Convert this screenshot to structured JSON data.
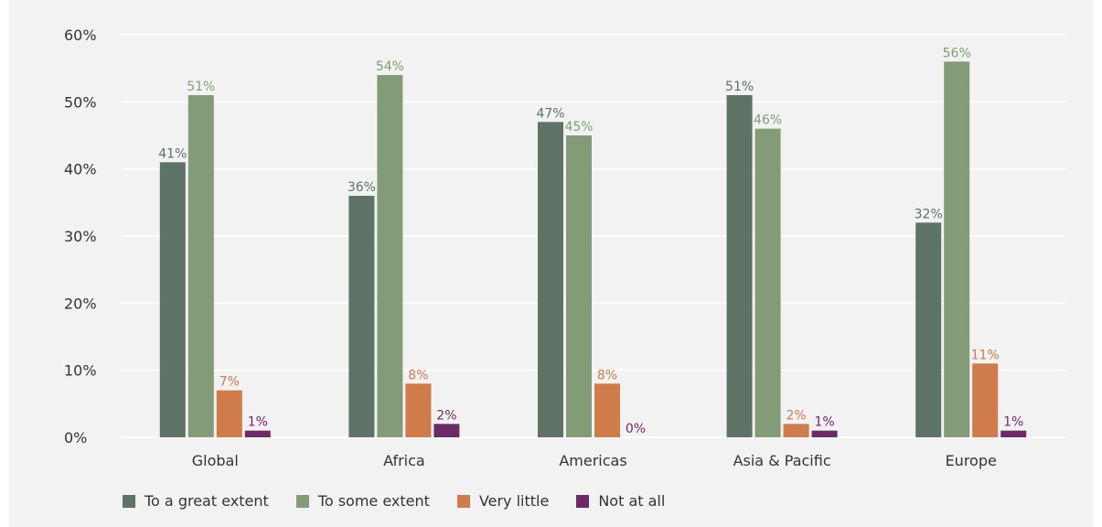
{
  "chart_data": {
    "type": "bar",
    "categories": [
      "Global",
      "Africa",
      "Americas",
      "Asia & Pacific",
      "Europe"
    ],
    "series": [
      {
        "name": "To a great extent",
        "color": "#5e7268",
        "label_color": "#5e7268",
        "values": [
          41,
          36,
          47,
          51,
          32
        ],
        "labels": [
          "41%",
          "36%",
          "47%",
          "51%",
          "32%"
        ]
      },
      {
        "name": "To some extent",
        "color": "#839c77",
        "label_color": "#839c77",
        "values": [
          51,
          54,
          45,
          46,
          56
        ],
        "labels": [
          "51%",
          "54%",
          "45%",
          "46%",
          "56%"
        ]
      },
      {
        "name": "Very little",
        "color": "#d07b4a",
        "label_color": "#d07b4a",
        "values": [
          7,
          8,
          8,
          2,
          11
        ],
        "labels": [
          "7%",
          "8%",
          "8%",
          "2%",
          "11%"
        ]
      },
      {
        "name": "Not at all",
        "color": "#6e2a66",
        "label_color": "#6e2a66",
        "values": [
          1,
          2,
          0,
          1,
          1
        ],
        "labels": [
          "1%",
          "2%",
          "0%",
          "1%",
          "1%"
        ]
      }
    ],
    "y_ticks": [
      "0%",
      "10%",
      "20%",
      "30%",
      "40%",
      "50%",
      "60%"
    ],
    "ylim": [
      0,
      60
    ],
    "grid": true,
    "legend_position": "bottom-left"
  }
}
